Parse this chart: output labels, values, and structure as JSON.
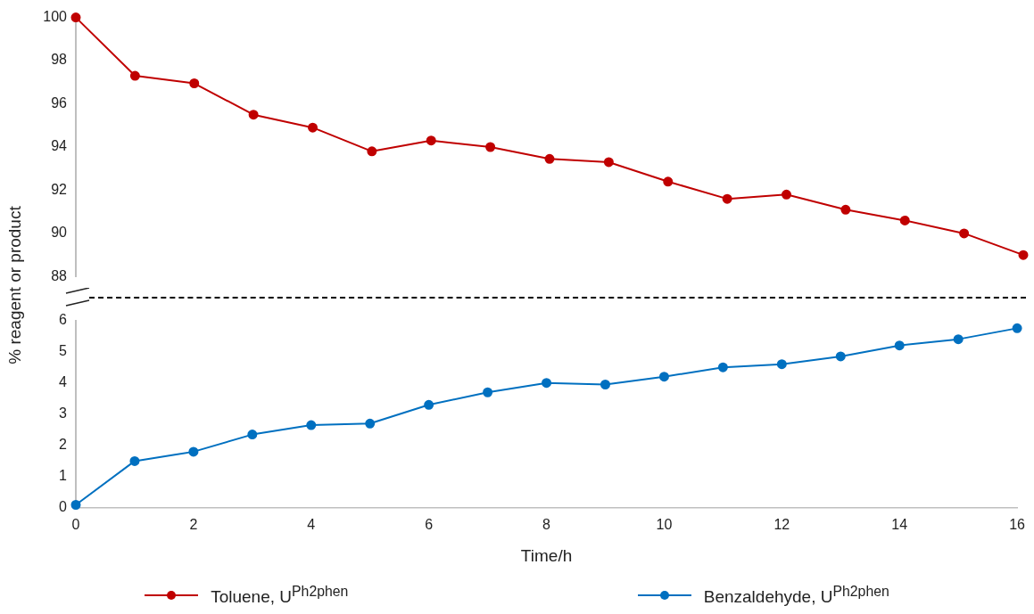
{
  "chart_data": [
    {
      "type": "line",
      "ylabel": "% reagent or product",
      "x": [
        0,
        1,
        2,
        3,
        4,
        5,
        6,
        7,
        8,
        9,
        10,
        11,
        12,
        13,
        14,
        15,
        16
      ],
      "xlim": [
        0,
        16
      ],
      "ylim": [
        88,
        100
      ],
      "yticks": [
        88,
        90,
        92,
        94,
        96,
        98,
        100
      ],
      "tick_labels": "y",
      "marker": "circle",
      "legend": "bottom",
      "series": [
        {
          "name": "Toluene, U$^{Ph2phen}$",
          "color": "#c00000",
          "values": [
            100,
            97.3,
            96.95,
            95.5,
            94.9,
            93.8,
            94.3,
            94.0,
            93.45,
            93.3,
            92.4,
            91.6,
            91.8,
            91.1,
            90.6,
            90.0,
            89.0
          ]
        }
      ]
    },
    {
      "type": "line",
      "xlabel": "Time/h",
      "x": [
        0,
        1,
        2,
        3,
        4,
        5,
        6,
        7,
        8,
        9,
        10,
        11,
        12,
        13,
        14,
        15,
        16
      ],
      "xlim": [
        0,
        16
      ],
      "xticks": [
        0,
        2,
        4,
        6,
        8,
        10,
        12,
        14,
        16
      ],
      "ylim": [
        0,
        6
      ],
      "yticks": [
        0,
        1,
        2,
        3,
        4,
        5,
        6
      ],
      "marker": "circle",
      "legend": "bottom",
      "series": [
        {
          "name": "Benzaldehyde, U$^{Ph2phen}$",
          "color": "#0070c0",
          "values": [
            0.1,
            1.5,
            1.8,
            2.35,
            2.65,
            2.7,
            3.3,
            3.7,
            4.0,
            3.95,
            4.2,
            4.5,
            4.6,
            4.85,
            5.2,
            5.4,
            5.75
          ]
        }
      ]
    }
  ]
}
